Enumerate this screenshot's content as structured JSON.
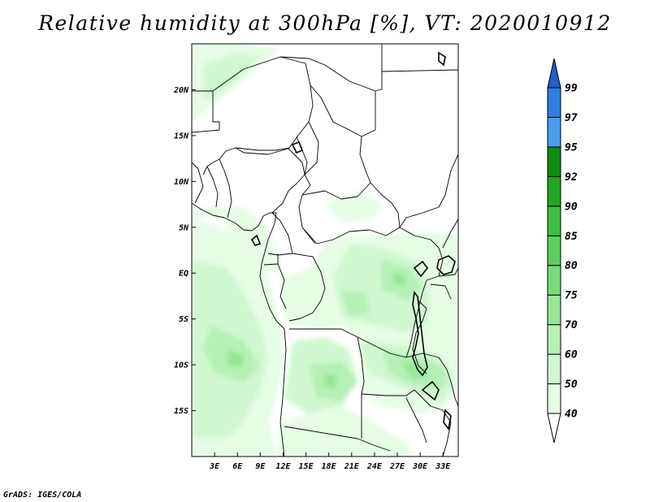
{
  "title": "Relative humidity at 300hPa [%], VT: 2020010912",
  "credit": "GrADS: IGES/COLA",
  "map": {
    "region": "Central Africa",
    "lon_range": [
      0,
      35
    ],
    "lat_range": [
      -20,
      25
    ],
    "x_ticks": [
      "3E",
      "6E",
      "9E",
      "12E",
      "15E",
      "18E",
      "21E",
      "24E",
      "27E",
      "30E",
      "33E"
    ],
    "y_ticks": [
      "20N",
      "15N",
      "10N",
      "5N",
      "EQ",
      "5S",
      "10S",
      "15S"
    ]
  },
  "colorbar": {
    "labels": [
      "40",
      "50",
      "60",
      "70",
      "75",
      "80",
      "85",
      "90",
      "92",
      "95",
      "97",
      "99"
    ],
    "colors": [
      "#ffffff",
      "#e6fde6",
      "#cff8cf",
      "#b5f0b5",
      "#97e697",
      "#78db78",
      "#5bcf5b",
      "#3dbf3d",
      "#21a821",
      "#0f8c0f",
      "#4d9ef0",
      "#2f7fe0",
      "#1f5fc8"
    ]
  }
}
